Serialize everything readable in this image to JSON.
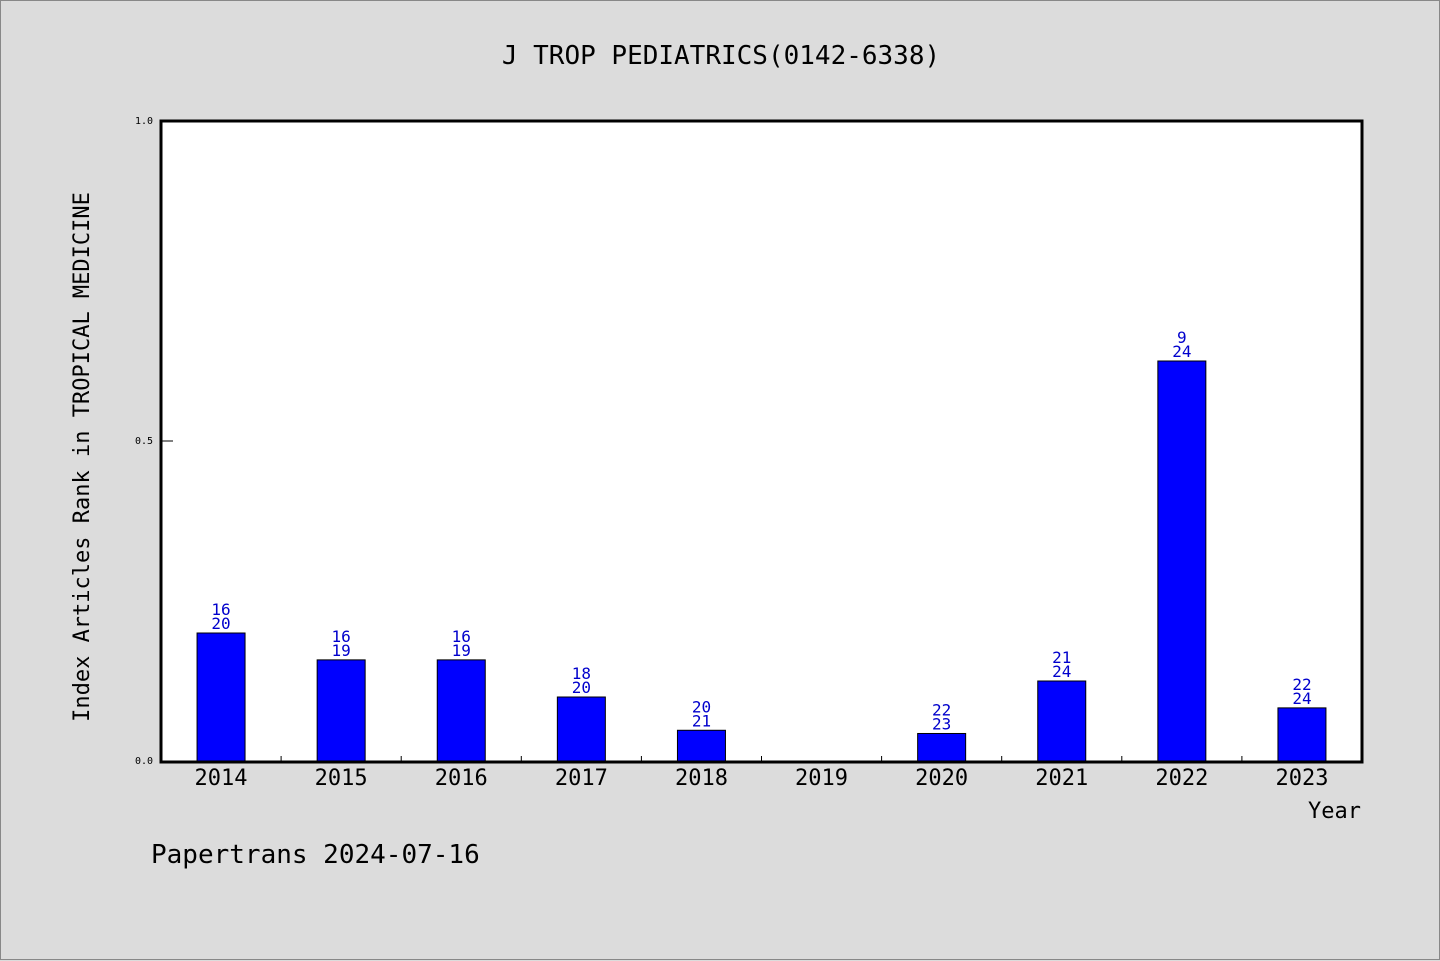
{
  "chart_data": {
    "type": "bar",
    "title": "J TROP PEDIATRICS(0142-6338)",
    "xlabel": "Year",
    "ylabel": "Index Articles Rank in TROPICAL MEDICINE",
    "ylim": [
      0,
      1.0
    ],
    "yticks": [
      "0.0",
      "0.5",
      "1.0"
    ],
    "grid": false,
    "categories": [
      "2014",
      "2015",
      "2016",
      "2017",
      "2018",
      "2019",
      "2020",
      "2021",
      "2022",
      "2023"
    ],
    "values": [
      0.2,
      0.158,
      0.158,
      0.1,
      0.048,
      null,
      0.043,
      0.125,
      0.625,
      0.083
    ],
    "labels": [
      [
        "16",
        "20"
      ],
      [
        "16",
        "19"
      ],
      [
        "16",
        "19"
      ],
      [
        "18",
        "20"
      ],
      [
        "20",
        "21"
      ],
      null,
      [
        "22",
        "23"
      ],
      [
        "21",
        "24"
      ],
      [
        "9",
        "24"
      ],
      [
        "22",
        "24"
      ]
    ],
    "bar_color": "#0000ff",
    "label_color": "#0000cc"
  },
  "footer": "Papertrans 2024-07-16"
}
